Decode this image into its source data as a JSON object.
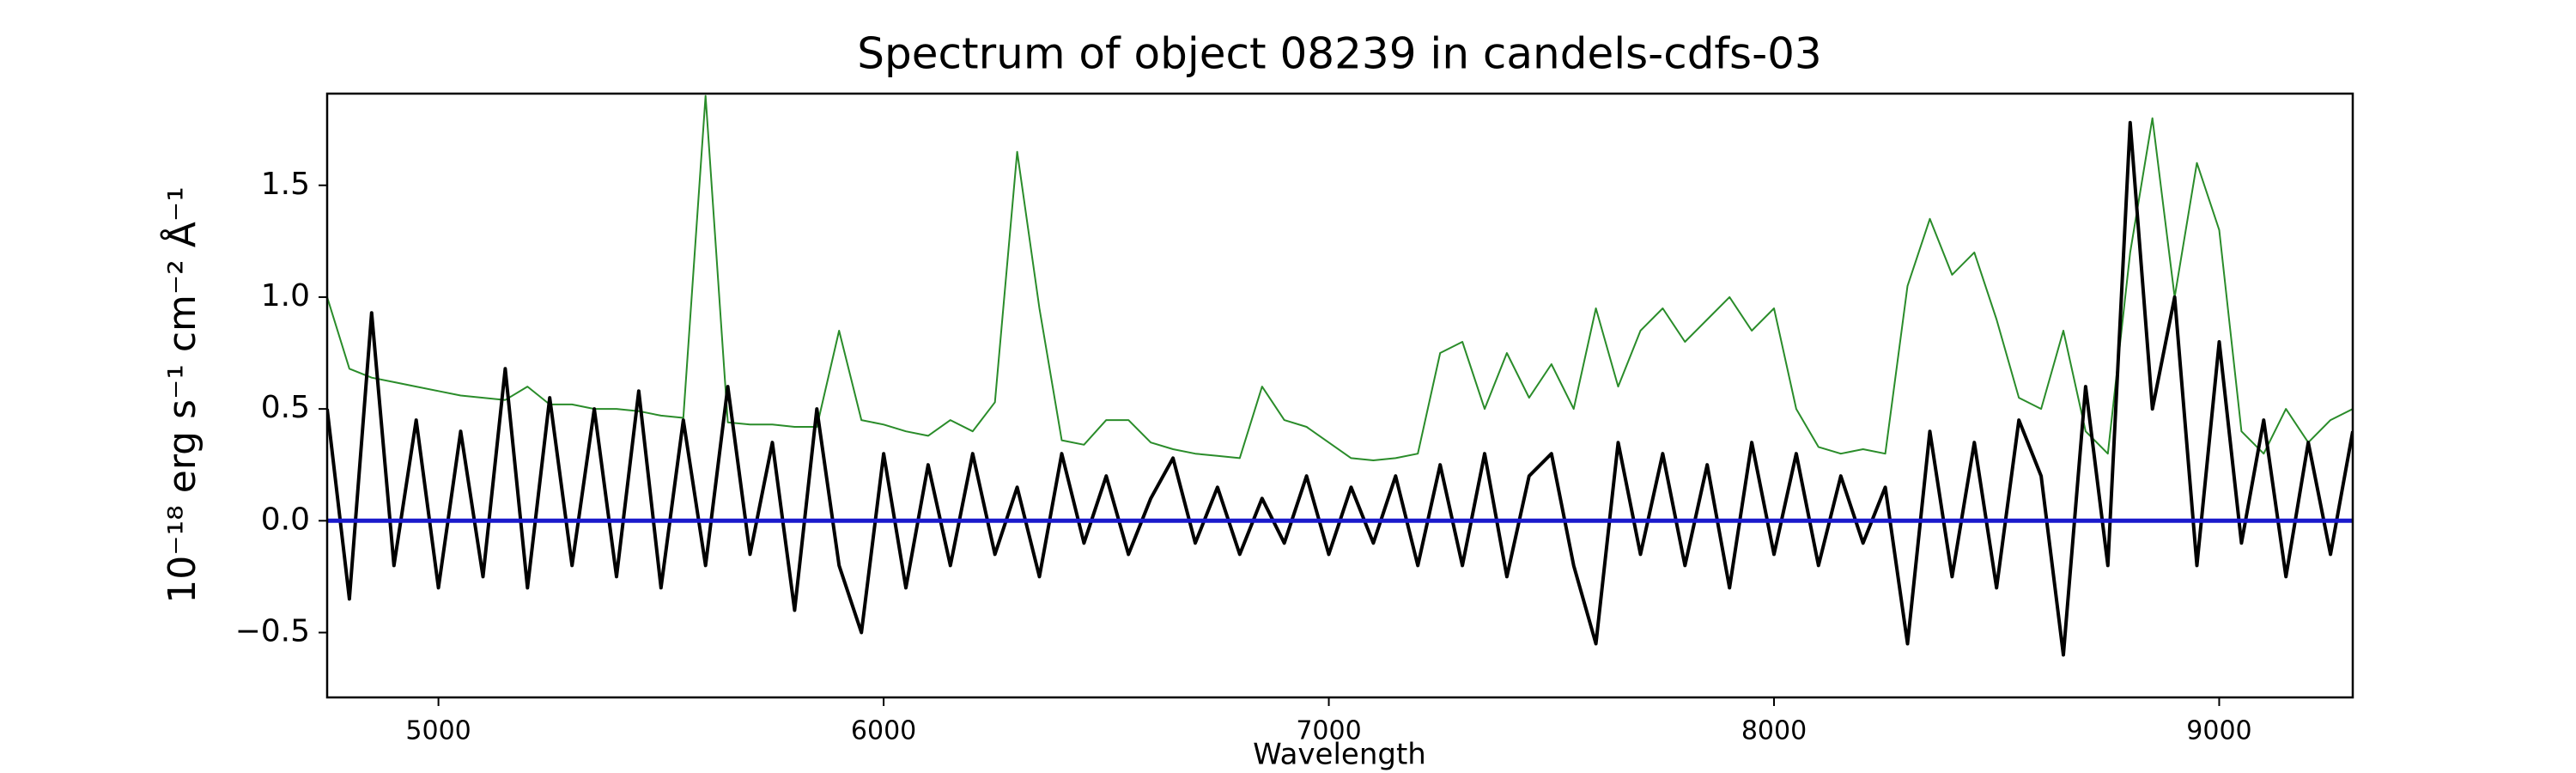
{
  "chart_data": {
    "type": "line",
    "title": "Spectrum of object 08239 in candels-cdfs-03",
    "xlabel": "Wavelength",
    "ylabel": "10⁻¹⁸ erg s⁻¹ cm⁻² Å⁻¹",
    "xlim": [
      4750,
      9300
    ],
    "ylim": [
      -0.79,
      1.91
    ],
    "xticks": [
      5000,
      6000,
      7000,
      8000,
      9000
    ],
    "yticks": [
      {
        "value": -0.5,
        "label": "−0.5"
      },
      {
        "value": 0,
        "label": "0.0"
      },
      0.5,
      {
        "value": 1,
        "label": "1.0"
      },
      1.5
    ],
    "grid": false,
    "series": [
      {
        "color": "#2a8c2a",
        "width": 2,
        "x": [
          4750,
          4800,
          4850,
          4900,
          4950,
          5000,
          5050,
          5100,
          5150,
          5200,
          5250,
          5300,
          5350,
          5400,
          5450,
          5500,
          5550,
          5600,
          5650,
          5700,
          5750,
          5800,
          5850,
          5900,
          5950,
          6000,
          6050,
          6100,
          6150,
          6200,
          6250,
          6300,
          6350,
          6400,
          6450,
          6500,
          6550,
          6600,
          6650,
          6700,
          6750,
          6800,
          6850,
          6900,
          6950,
          7000,
          7050,
          7100,
          7150,
          7200,
          7250,
          7300,
          7350,
          7400,
          7450,
          7500,
          7550,
          7600,
          7650,
          7700,
          7750,
          7800,
          7850,
          7900,
          7950,
          8000,
          8050,
          8100,
          8150,
          8200,
          8250,
          8300,
          8350,
          8400,
          8450,
          8500,
          8550,
          8600,
          8650,
          8700,
          8750,
          8800,
          8850,
          8900,
          8950,
          9000,
          9050,
          9100,
          9150,
          9200,
          9250,
          9300
        ],
        "values": [
          1.0,
          0.68,
          0.64,
          0.62,
          0.6,
          0.58,
          0.56,
          0.55,
          0.54,
          0.6,
          0.52,
          0.52,
          0.5,
          0.5,
          0.49,
          0.47,
          0.46,
          1.9,
          0.44,
          0.43,
          0.43,
          0.42,
          0.42,
          0.85,
          0.45,
          0.43,
          0.4,
          0.38,
          0.45,
          0.4,
          0.53,
          1.65,
          0.95,
          0.36,
          0.34,
          0.45,
          0.45,
          0.35,
          0.32,
          0.3,
          0.29,
          0.28,
          0.6,
          0.45,
          0.42,
          0.35,
          0.28,
          0.27,
          0.28,
          0.3,
          0.75,
          0.8,
          0.5,
          0.75,
          0.55,
          0.7,
          0.5,
          0.95,
          0.6,
          0.85,
          0.95,
          0.8,
          0.9,
          1.0,
          0.85,
          0.95,
          0.5,
          0.33,
          0.3,
          0.32,
          0.3,
          1.05,
          1.35,
          1.1,
          1.2,
          0.9,
          0.55,
          0.5,
          0.85,
          0.4,
          0.3,
          1.2,
          1.8,
          1.0,
          1.6,
          1.3,
          0.4,
          0.3,
          0.5,
          0.35,
          0.45,
          0.5
        ]
      },
      {
        "color": "#000000",
        "width": 4,
        "x": [
          4750,
          4800,
          4850,
          4900,
          4950,
          5000,
          5050,
          5100,
          5150,
          5200,
          5250,
          5300,
          5350,
          5400,
          5450,
          5500,
          5550,
          5600,
          5650,
          5700,
          5750,
          5800,
          5850,
          5900,
          5950,
          6000,
          6050,
          6100,
          6150,
          6200,
          6250,
          6300,
          6350,
          6400,
          6450,
          6500,
          6550,
          6600,
          6650,
          6700,
          6750,
          6800,
          6850,
          6900,
          6950,
          7000,
          7050,
          7100,
          7150,
          7200,
          7250,
          7300,
          7350,
          7400,
          7450,
          7500,
          7550,
          7600,
          7650,
          7700,
          7750,
          7800,
          7850,
          7900,
          7950,
          8000,
          8050,
          8100,
          8150,
          8200,
          8250,
          8300,
          8350,
          8400,
          8450,
          8500,
          8550,
          8600,
          8650,
          8700,
          8750,
          8800,
          8850,
          8900,
          8950,
          9000,
          9050,
          9100,
          9150,
          9200,
          9250,
          9300
        ],
        "values": [
          0.5,
          -0.35,
          0.93,
          -0.2,
          0.45,
          -0.3,
          0.4,
          -0.25,
          0.68,
          -0.3,
          0.55,
          -0.2,
          0.5,
          -0.25,
          0.58,
          -0.3,
          0.45,
          -0.2,
          0.6,
          -0.15,
          0.35,
          -0.4,
          0.5,
          -0.2,
          -0.5,
          0.3,
          -0.3,
          0.25,
          -0.2,
          0.3,
          -0.15,
          0.15,
          -0.25,
          0.3,
          -0.1,
          0.2,
          -0.15,
          0.1,
          0.28,
          -0.1,
          0.15,
          -0.15,
          0.1,
          -0.1,
          0.2,
          -0.15,
          0.15,
          -0.1,
          0.2,
          -0.2,
          0.25,
          -0.2,
          0.3,
          -0.25,
          0.2,
          0.3,
          -0.2,
          -0.55,
          0.35,
          -0.15,
          0.3,
          -0.2,
          0.25,
          -0.3,
          0.35,
          -0.15,
          0.3,
          -0.2,
          0.2,
          -0.1,
          0.15,
          -0.55,
          0.4,
          -0.25,
          0.35,
          -0.3,
          0.45,
          0.2,
          -0.6,
          0.6,
          -0.2,
          1.78,
          0.5,
          1.0,
          -0.2,
          0.8,
          -0.1,
          0.45,
          -0.25,
          0.35,
          -0.15,
          0.4
        ]
      },
      {
        "color": "#1a1acc",
        "width": 5,
        "x": [
          4750,
          9300
        ],
        "values": [
          0,
          0
        ]
      }
    ]
  }
}
